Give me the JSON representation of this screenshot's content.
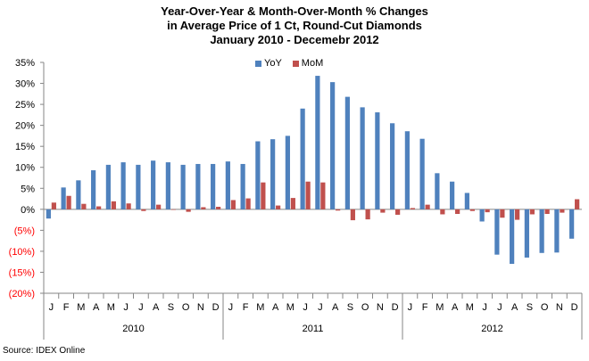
{
  "chart_data": {
    "type": "bar",
    "title_lines": [
      "Year-Over-Year & Month-Over-Month % Changes",
      "in Average Price of 1 Ct, Round-Cut Diamonds",
      "January 2010 - Decemebr 2012"
    ],
    "categories": [
      "J",
      "F",
      "M",
      "A",
      "M",
      "J",
      "J",
      "A",
      "S",
      "O",
      "N",
      "D",
      "J",
      "F",
      "M",
      "A",
      "M",
      "J",
      "J",
      "A",
      "S",
      "O",
      "N",
      "D",
      "J",
      "F",
      "M",
      "A",
      "M",
      "J",
      "J",
      "A",
      "S",
      "O",
      "N",
      "D"
    ],
    "years": [
      "2010",
      "2011",
      "2012"
    ],
    "series": [
      {
        "name": "YoY",
        "color": "#4f81bd",
        "values": [
          -2.2,
          5.2,
          6.9,
          9.3,
          10.6,
          11.2,
          10.6,
          11.6,
          11.2,
          10.6,
          10.8,
          10.8,
          11.4,
          10.8,
          16.2,
          16.7,
          17.5,
          24.0,
          31.8,
          30.3,
          26.8,
          24.3,
          23.1,
          20.5,
          18.6,
          16.8,
          8.6,
          6.6,
          3.9,
          -2.9,
          -10.8,
          -13.0,
          -11.5,
          -10.4,
          -10.3,
          -7.0
        ]
      },
      {
        "name": "MoM",
        "color": "#c0504d",
        "values": [
          1.6,
          3.2,
          1.3,
          0.7,
          1.9,
          1.4,
          -0.4,
          1.1,
          -0.1,
          -0.6,
          0.5,
          0.6,
          2.2,
          2.6,
          6.4,
          0.9,
          2.7,
          6.6,
          6.4,
          -0.3,
          -2.6,
          -2.4,
          -0.8,
          -1.3,
          0.3,
          1.1,
          -1.2,
          -1.1,
          -0.4,
          -0.7,
          -2.0,
          -2.5,
          -1.2,
          -1.1,
          -0.8,
          2.4
        ]
      }
    ],
    "ylim": [
      -20,
      35
    ],
    "yticks": [
      35,
      30,
      25,
      20,
      15,
      10,
      5,
      0,
      -5,
      -10,
      -15,
      -20
    ],
    "ytick_labels": [
      "35%",
      "30%",
      "25%",
      "20%",
      "15%",
      "10%",
      "5%",
      "0%",
      "(5%)",
      "(10%)",
      "(15%)",
      "(20%)"
    ],
    "negative_label_color": "#ff0000",
    "legend_position": "top",
    "grid": false
  },
  "source": "Source:  IDEX Online"
}
